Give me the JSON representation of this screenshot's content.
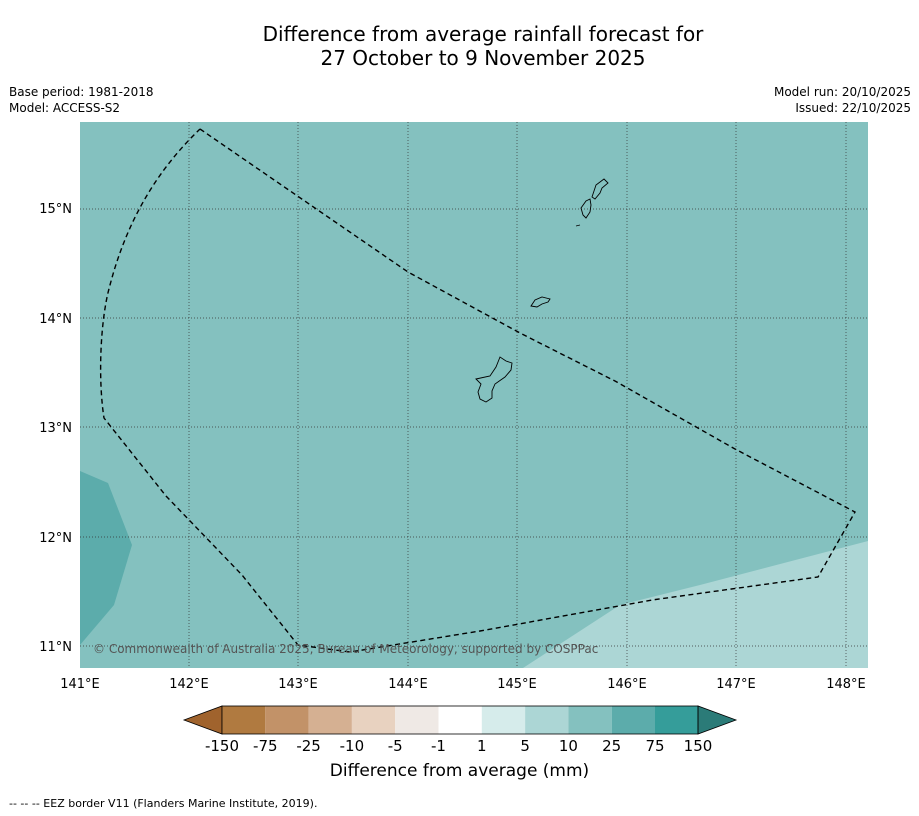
{
  "title_line1": "Difference from average rainfall forecast for",
  "title_line2": "27 October to 9 November 2025",
  "meta": {
    "base_period": "Base period: 1981-2018",
    "model": "Model: ACCESS-S2",
    "model_run": "Model run: 20/10/2025",
    "issued": "Issued: 22/10/2025"
  },
  "map": {
    "lon_labels": [
      "141°E",
      "142°E",
      "143°E",
      "144°E",
      "145°E",
      "146°E",
      "147°E",
      "148°E"
    ],
    "lat_labels": [
      "15°N",
      "14°N",
      "13°N",
      "12°N",
      "11°N"
    ],
    "copyright": "© Commonwealth of Australia 2025, Bureau of Meteorology, supported by COSPPac",
    "colors": {
      "background_10_25": "#84c1bf",
      "region_25_75": "#5cacab",
      "region_5_10": "#acd6d5"
    }
  },
  "colorbar": {
    "labels": [
      "-150",
      "-75",
      "-25",
      "-10",
      "-5",
      "-1",
      "1",
      "5",
      "10",
      "25",
      "75",
      "150"
    ],
    "colors": [
      "#a0632d",
      "#b07a40",
      "#c29268",
      "#d5b092",
      "#e8d2c0",
      "#efe9e5",
      "#ffffff",
      "#d6eceb",
      "#acd6d5",
      "#84c1bf",
      "#5cacab",
      "#359d9a",
      "#2b7b78"
    ],
    "title": "Difference from average (mm)"
  },
  "footer": "--  --  -- EEZ border V11 (Flanders Marine Institute, 2019)."
}
